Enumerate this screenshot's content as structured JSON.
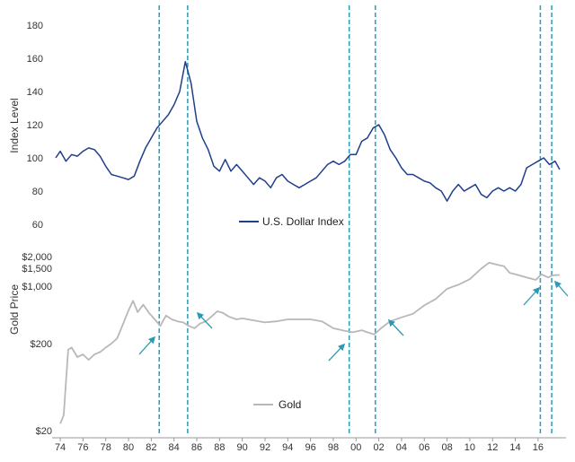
{
  "chart_data": [
    {
      "type": "line",
      "panel": "top",
      "ylabel": "Index Level",
      "ylim": [
        60,
        180
      ],
      "yticks": [
        "180",
        "160",
        "140",
        "120",
        "100",
        "80",
        "60"
      ],
      "color": "#1f3f8a",
      "series": [
        {
          "name": "U.S. Dollar Index",
          "x": [
            1973.6,
            1974.0,
            1974.5,
            1975.0,
            1975.5,
            1976.0,
            1976.5,
            1977.0,
            1977.5,
            1978.0,
            1978.5,
            1979.0,
            1979.5,
            1980.0,
            1980.5,
            1981.0,
            1981.5,
            1982.0,
            1982.5,
            1983.0,
            1983.5,
            1984.0,
            1984.5,
            1985.0,
            1985.5,
            1986.0,
            1986.5,
            1987.0,
            1987.5,
            1988.0,
            1988.5,
            1989.0,
            1989.5,
            1990.0,
            1990.5,
            1991.0,
            1991.5,
            1992.0,
            1992.5,
            1993.0,
            1993.5,
            1994.0,
            1994.5,
            1995.0,
            1995.5,
            1996.0,
            1996.5,
            1997.0,
            1997.5,
            1998.0,
            1998.5,
            1999.0,
            1999.5,
            2000.0,
            2000.5,
            2001.0,
            2001.5,
            2002.0,
            2002.5,
            2003.0,
            2003.5,
            2004.0,
            2004.5,
            2005.0,
            2005.5,
            2006.0,
            2006.5,
            2007.0,
            2007.5,
            2008.0,
            2008.5,
            2009.0,
            2009.5,
            2010.0,
            2010.5,
            2011.0,
            2011.5,
            2012.0,
            2012.5,
            2013.0,
            2013.5,
            2014.0,
            2014.5,
            2015.0,
            2015.5,
            2016.0,
            2016.5,
            2017.0,
            2017.5,
            2017.9
          ],
          "values": [
            100,
            104,
            98,
            102,
            101,
            104,
            106,
            105,
            101,
            95,
            90,
            89,
            88,
            87,
            89,
            98,
            106,
            112,
            118,
            122,
            126,
            132,
            140,
            158,
            145,
            122,
            112,
            105,
            95,
            92,
            99,
            92,
            96,
            92,
            88,
            84,
            88,
            86,
            82,
            88,
            90,
            86,
            84,
            82,
            84,
            86,
            88,
            92,
            96,
            98,
            96,
            98,
            102,
            102,
            110,
            112,
            118,
            120,
            114,
            105,
            100,
            94,
            90,
            90,
            88,
            86,
            85,
            82,
            80,
            74,
            80,
            84,
            80,
            82,
            84,
            78,
            76,
            80,
            82,
            80,
            82,
            80,
            84,
            94,
            96,
            98,
            100,
            96,
            98,
            93
          ]
        }
      ]
    },
    {
      "type": "line",
      "panel": "bottom",
      "ylabel": "Gold Price",
      "yscale": "log",
      "ylim": [
        20,
        2000
      ],
      "yticks": [
        "$2,000",
        "$1,500",
        "$1,000",
        "$200",
        "$20"
      ],
      "color": "#b8b8b8",
      "series": [
        {
          "name": "Gold",
          "x": [
            1974.0,
            1974.3,
            1974.7,
            1975.0,
            1975.5,
            1976.0,
            1976.5,
            1977.0,
            1977.5,
            1978.0,
            1978.5,
            1979.0,
            1979.5,
            1980.0,
            1980.4,
            1980.8,
            1981.3,
            1981.8,
            1982.3,
            1982.8,
            1983.3,
            1983.8,
            1984.3,
            1984.8,
            1985.3,
            1985.8,
            1986.3,
            1986.8,
            1987.3,
            1987.8,
            1988.3,
            1988.8,
            1989.5,
            1990.0,
            1991.0,
            1992.0,
            1993.0,
            1994.0,
            1995.0,
            1996.0,
            1997.0,
            1998.0,
            1999.0,
            1999.7,
            2000.5,
            2001.0,
            2001.6,
            2002.2,
            2003.0,
            2004.0,
            2005.0,
            2006.0,
            2007.0,
            2008.0,
            2008.5,
            2009.0,
            2010.0,
            2011.0,
            2011.7,
            2012.5,
            2013.0,
            2013.5,
            2014.0,
            2015.0,
            2015.8,
            2016.3,
            2016.9,
            2017.3,
            2017.9
          ],
          "values": [
            24,
            30,
            170,
            180,
            140,
            150,
            130,
            150,
            160,
            180,
            200,
            230,
            330,
            480,
            620,
            460,
            560,
            450,
            380,
            320,
            420,
            380,
            360,
            350,
            320,
            300,
            340,
            360,
            410,
            470,
            450,
            410,
            380,
            390,
            370,
            350,
            360,
            380,
            380,
            380,
            360,
            300,
            280,
            270,
            285,
            270,
            255,
            300,
            360,
            400,
            440,
            550,
            650,
            850,
            900,
            950,
            1100,
            1450,
            1700,
            1600,
            1550,
            1300,
            1250,
            1150,
            1080,
            1250,
            1150,
            1220,
            1230
          ]
        }
      ]
    },
    {
      "type": "axis",
      "xticks": [
        "74",
        "76",
        "78",
        "80",
        "82",
        "84",
        "86",
        "88",
        "90",
        "92",
        "94",
        "96",
        "98",
        "00",
        "02",
        "04",
        "06",
        "08",
        "10",
        "12",
        "14",
        "16"
      ],
      "xlim": [
        1973.6,
        2018.3
      ],
      "event_lines_years": [
        1982.7,
        1985.2,
        1999.4,
        2001.7,
        2016.2,
        2017.2
      ],
      "arrow_color": "#2a9bb5"
    }
  ]
}
